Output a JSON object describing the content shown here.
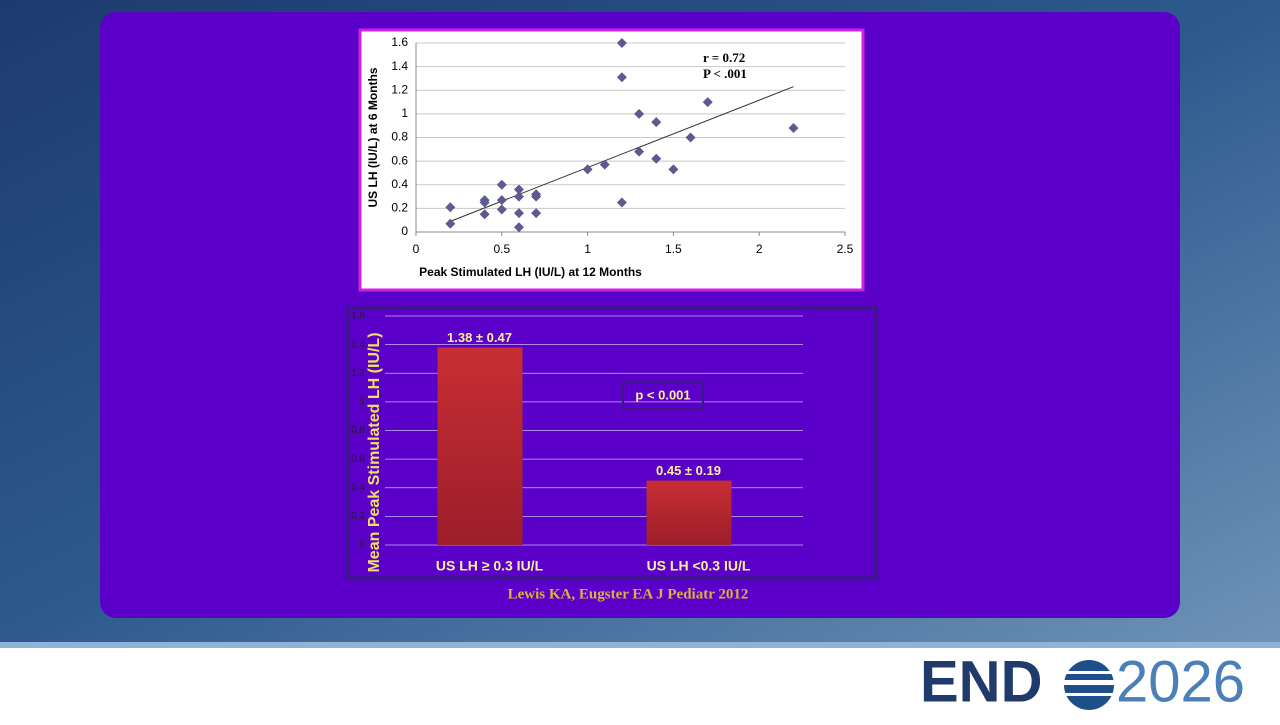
{
  "chart_data": [
    {
      "type": "scatter",
      "x_label": "Peak Stimulated LH (IU/L) at 12 Months",
      "y_label": "US LH (IU/L) at 6 Months",
      "annotations": [
        "r = 0.72",
        "P < .001"
      ],
      "x": [
        0.2,
        0.2,
        0.4,
        0.4,
        0.4,
        0.5,
        0.5,
        0.5,
        0.6,
        0.6,
        0.6,
        0.6,
        0.7,
        0.7,
        0.7,
        1.0,
        1.1,
        1.2,
        1.2,
        1.2,
        1.3,
        1.3,
        1.4,
        1.4,
        1.5,
        1.6,
        1.7,
        2.2
      ],
      "values": [
        0.21,
        0.07,
        0.27,
        0.25,
        0.15,
        0.4,
        0.27,
        0.19,
        0.36,
        0.3,
        0.16,
        0.04,
        0.32,
        0.3,
        0.16,
        0.53,
        0.57,
        1.6,
        1.31,
        0.25,
        1.0,
        0.68,
        0.93,
        0.62,
        0.53,
        0.8,
        1.1,
        0.88
      ],
      "color": "#5c5a8e",
      "trendline": {
        "x": [
          0.2,
          2.2
        ],
        "y": [
          0.09,
          1.23
        ]
      },
      "xlim": [
        0,
        2.5
      ],
      "xticks": [
        0,
        0.5,
        1,
        1.5,
        2,
        2.5
      ],
      "ylim": [
        0,
        1.6
      ],
      "yticks": [
        0,
        0.2,
        0.4,
        0.6,
        0.8,
        1,
        1.2,
        1.4,
        1.6
      ],
      "grid": true
    },
    {
      "type": "bar",
      "y_label": "Mean Peak Stimulated LH (IU/L)",
      "categories": [
        "US LH  ≥ 0.3 IU/L",
        "US LH <0.3 IU/L"
      ],
      "values": [
        1.38,
        0.45
      ],
      "value_labels": [
        "1.38 ± 0.47",
        "0.45 ± 0.19"
      ],
      "color": "#b5262e",
      "annotations": [
        "p < 0.001"
      ],
      "ylim": [
        0,
        1.6
      ],
      "yticks": [
        0,
        0.2,
        0.4,
        0.6,
        0.8,
        1,
        1.2,
        1.4,
        1.6
      ],
      "grid": true
    }
  ],
  "citation": "Lewis  KA, Eugster EA J Pediatr 2012",
  "logo": {
    "brand": "END",
    "year": "2026"
  }
}
